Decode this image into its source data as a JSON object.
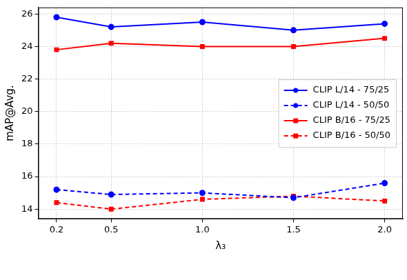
{
  "chart_data": {
    "type": "line",
    "x_label": "λ₃",
    "y_label": "mAP@Avg.",
    "x": [
      0.2,
      0.5,
      1.0,
      1.5,
      2.0
    ],
    "xlim": [
      0.1,
      2.1
    ],
    "xticks": [
      0.2,
      0.5,
      {
        "value": 1.0,
        "label": "1.0"
      },
      1.5,
      {
        "value": 2.0,
        "label": "2.0"
      }
    ],
    "ylim": [
      13.4,
      26.4
    ],
    "yticks": [
      14,
      16,
      18,
      20,
      22,
      24,
      26
    ],
    "grid": true,
    "legend": "center right",
    "series": [
      {
        "name": "CLIP L/14 - 75/25",
        "color": "#0000ff",
        "marker": "circle",
        "line_style": "solid",
        "values": [
          25.8,
          25.2,
          25.5,
          25.0,
          25.4
        ]
      },
      {
        "name": "CLIP L/14 - 50/50",
        "color": "#0000ff",
        "marker": "circle",
        "line_style": "dashed",
        "values": [
          15.2,
          14.9,
          15.0,
          14.7,
          15.6
        ]
      },
      {
        "name": "CLIP B/16 - 75/25",
        "color": "#ff0000",
        "marker": "square",
        "line_style": "solid",
        "values": [
          23.8,
          24.2,
          24.0,
          24.0,
          24.5
        ]
      },
      {
        "name": "CLIP B/16 - 50/50",
        "color": "#ff0000",
        "marker": "square",
        "line_style": "dashed",
        "values": [
          14.4,
          14.0,
          14.6,
          14.8,
          14.5
        ]
      }
    ]
  }
}
